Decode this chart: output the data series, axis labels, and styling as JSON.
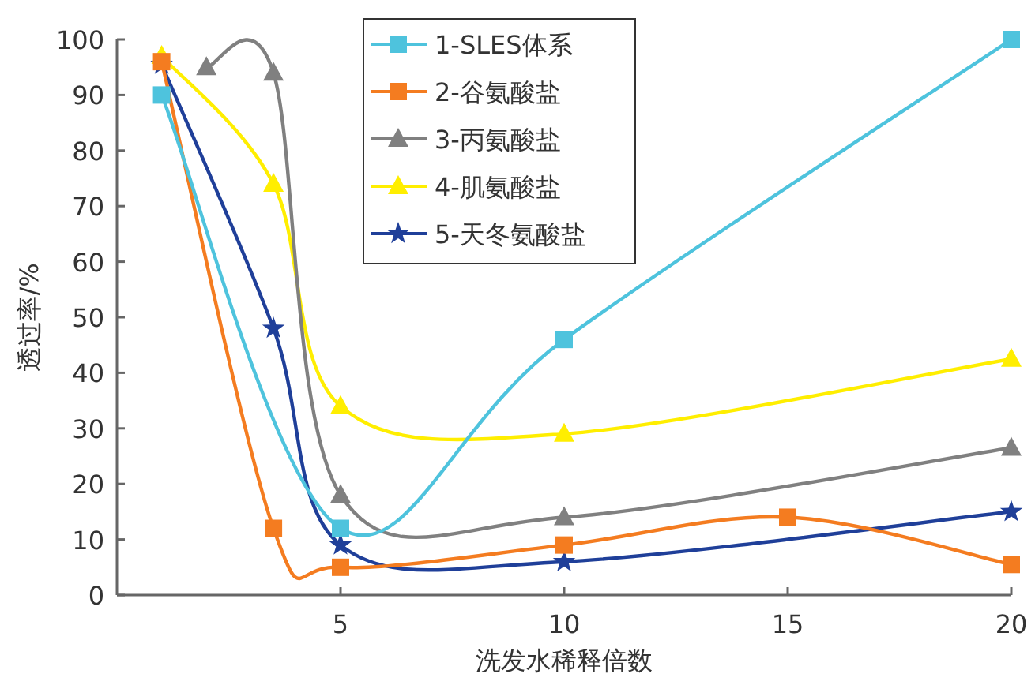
{
  "chart_data": {
    "type": "line",
    "xlabel": "洗发水稀释倍数",
    "ylabel": "透过率/%",
    "xlim": [
      0,
      20
    ],
    "xticks": [
      5,
      10,
      15,
      20
    ],
    "ylim": [
      0,
      100
    ],
    "yticks": [
      0,
      10,
      20,
      30,
      40,
      50,
      60,
      70,
      80,
      90,
      100
    ],
    "grid": false,
    "legend": "top",
    "series": [
      {
        "name": "1-SLES体系",
        "color": "#4ec3dd",
        "marker": "square",
        "x": [
          1,
          5,
          10,
          20
        ],
        "values": [
          90,
          12,
          46,
          100
        ]
      },
      {
        "name": "2-谷氨酸盐",
        "color": "#f47c20",
        "marker": "square",
        "x": [
          1,
          3.5,
          5,
          10,
          15,
          20
        ],
        "values": [
          96,
          12,
          5,
          9,
          14,
          5.5
        ]
      },
      {
        "name": "3-丙氨酸盐",
        "color": "#808080",
        "marker": "triangle",
        "x": [
          2,
          3.5,
          5,
          10,
          20
        ],
        "values": [
          95,
          94,
          18,
          14,
          26.5
        ]
      },
      {
        "name": "4-肌氨酸盐",
        "color": "#ffee00",
        "marker": "triangle",
        "x": [
          1,
          3.5,
          5,
          10,
          20
        ],
        "values": [
          97,
          74,
          34,
          29,
          42.5
        ]
      },
      {
        "name": "5-天冬氨酸盐",
        "color": "#1f3f99",
        "marker": "star",
        "x": [
          1,
          3.5,
          5,
          10,
          20
        ],
        "values": [
          95.5,
          48,
          9,
          6,
          15
        ]
      }
    ]
  }
}
